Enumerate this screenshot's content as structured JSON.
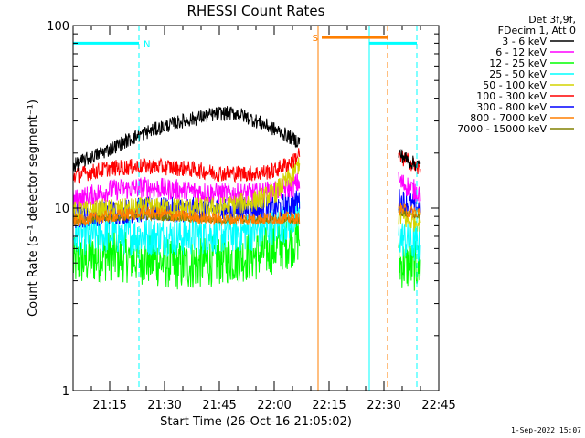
{
  "chart_data": {
    "type": "line",
    "title": "RHESSI Count Rates",
    "xlabel": "Start Time (26-Oct-16 21:05:02)",
    "ylabel": "Count Rate (s⁻¹ detector segment⁻¹)",
    "yscale": "log",
    "xlim": [
      "21:05",
      "22:45"
    ],
    "ylim": [
      1,
      100
    ],
    "x_ticks": [
      "21:15",
      "21:30",
      "21:45",
      "22:00",
      "22:15",
      "22:30",
      "22:45"
    ],
    "y_ticks": [
      "1",
      "10",
      "100"
    ],
    "legend_header": [
      "Det 3f,9f,",
      "FDecim 1, Att 0"
    ],
    "legend_position": "right",
    "timestamp": "1-Sep-2022 15:07",
    "series": [
      {
        "name": "3 - 6 keV",
        "color": "#000000",
        "points": [
          [
            "21:05",
            17
          ],
          [
            "21:15",
            21
          ],
          [
            "21:25",
            26
          ],
          [
            "21:35",
            30
          ],
          [
            "21:45",
            33
          ],
          [
            "21:50",
            33
          ],
          [
            "21:55",
            30
          ],
          [
            "22:00",
            27
          ],
          [
            "22:05",
            24
          ],
          [
            "22:07",
            23
          ]
        ],
        "points2": [
          [
            "22:34",
            20
          ],
          [
            "22:37",
            18
          ],
          [
            "22:40",
            17
          ]
        ]
      },
      {
        "name": "6 - 12 keV",
        "color": "#ff00ff",
        "points": [
          [
            "21:05",
            11
          ],
          [
            "21:15",
            12.5
          ],
          [
            "21:25",
            13
          ],
          [
            "21:35",
            12.5
          ],
          [
            "21:45",
            12
          ],
          [
            "21:55",
            12
          ],
          [
            "22:00",
            12.5
          ],
          [
            "22:05",
            13
          ],
          [
            "22:07",
            14
          ]
        ],
        "points2": [
          [
            "22:34",
            14
          ],
          [
            "22:37",
            13
          ],
          [
            "22:40",
            12
          ]
        ]
      },
      {
        "name": "12 - 25 keV",
        "color": "#00ff00",
        "points": [
          [
            "21:05",
            5
          ],
          [
            "21:15",
            5.5
          ],
          [
            "21:25",
            5.2
          ],
          [
            "21:35",
            4.8
          ],
          [
            "21:45",
            5.2
          ],
          [
            "21:55",
            5.5
          ],
          [
            "22:00",
            6
          ],
          [
            "22:05",
            6.5
          ],
          [
            "22:07",
            7
          ]
        ],
        "points2": [
          [
            "22:34",
            5
          ],
          [
            "22:37",
            4.8
          ],
          [
            "22:40",
            4.8
          ]
        ]
      },
      {
        "name": "25 - 50 keV",
        "color": "#00ffff",
        "points": [
          [
            "21:05",
            7
          ],
          [
            "21:15",
            7.2
          ],
          [
            "21:25",
            7
          ],
          [
            "21:35",
            7
          ],
          [
            "21:45",
            7.2
          ],
          [
            "21:55",
            7.5
          ],
          [
            "22:00",
            8
          ],
          [
            "22:05",
            8.5
          ],
          [
            "22:07",
            9
          ]
        ],
        "points2": [
          [
            "22:34",
            7
          ],
          [
            "22:37",
            6.5
          ],
          [
            "22:40",
            6.2
          ]
        ]
      },
      {
        "name": "50 - 100 keV",
        "color": "#d4d400",
        "points": [
          [
            "21:05",
            9.5
          ],
          [
            "21:15",
            9.8
          ],
          [
            "21:25",
            10
          ],
          [
            "21:35",
            10
          ],
          [
            "21:45",
            10
          ],
          [
            "21:55",
            11
          ],
          [
            "22:00",
            12
          ],
          [
            "22:05",
            15
          ],
          [
            "22:07",
            18
          ]
        ],
        "points2": [
          [
            "22:34",
            9
          ],
          [
            "22:37",
            8.5
          ],
          [
            "22:40",
            8.5
          ]
        ]
      },
      {
        "name": "100 - 300 keV",
        "color": "#ff0000",
        "points": [
          [
            "21:05",
            15
          ],
          [
            "21:15",
            16.5
          ],
          [
            "21:25",
            17
          ],
          [
            "21:35",
            16.5
          ],
          [
            "21:45",
            15.5
          ],
          [
            "21:55",
            15.5
          ],
          [
            "22:00",
            16
          ],
          [
            "22:05",
            18
          ],
          [
            "22:07",
            20
          ]
        ],
        "points2": [
          [
            "22:34",
            19
          ],
          [
            "22:37",
            18
          ],
          [
            "22:40",
            16
          ]
        ]
      },
      {
        "name": "300 - 800 keV",
        "color": "#0000ff",
        "points": [
          [
            "21:05",
            9
          ],
          [
            "21:15",
            9.5
          ],
          [
            "21:25",
            9.8
          ],
          [
            "21:35",
            9.8
          ],
          [
            "21:45",
            9.8
          ],
          [
            "21:55",
            9.8
          ],
          [
            "22:00",
            10
          ],
          [
            "22:05",
            10.5
          ],
          [
            "22:07",
            11
          ]
        ],
        "points2": [
          [
            "22:34",
            11
          ],
          [
            "22:37",
            10.5
          ],
          [
            "22:40",
            10
          ]
        ]
      },
      {
        "name": "800 - 7000 keV",
        "color": "#ff7f00",
        "points": [
          [
            "21:05",
            8.5
          ],
          [
            "21:15",
            9
          ],
          [
            "21:25",
            9.5
          ],
          [
            "21:35",
            9
          ],
          [
            "21:45",
            8.7
          ],
          [
            "21:55",
            8.7
          ],
          [
            "22:00",
            8.8
          ],
          [
            "22:05",
            8.8
          ],
          [
            "22:07",
            8.8
          ]
        ],
        "points2": [
          [
            "22:34",
            10
          ],
          [
            "22:37",
            9.5
          ],
          [
            "22:40",
            9.5
          ]
        ]
      },
      {
        "name": "7000 - 15000 keV",
        "color": "#808000",
        "points": [
          [
            "21:05",
            8.5
          ],
          [
            "21:15",
            8.8
          ],
          [
            "21:25",
            9
          ],
          [
            "21:35",
            8.8
          ],
          [
            "21:45",
            8.6
          ],
          [
            "21:55",
            8.6
          ],
          [
            "22:00",
            8.6
          ],
          [
            "22:05",
            8.6
          ],
          [
            "22:07",
            8.6
          ]
        ],
        "points2": [
          [
            "22:34",
            9.5
          ],
          [
            "22:37",
            9.2
          ],
          [
            "22:40",
            9
          ]
        ]
      }
    ],
    "segments": [
      {
        "label": "N",
        "color": "#00ffff",
        "from": "21:05",
        "to": "21:23",
        "y": 80
      },
      {
        "label": "S",
        "color": "#ff7f00",
        "from": "22:13",
        "to": "22:31",
        "y": 86
      },
      {
        "label": "",
        "color": "#00ffff",
        "from": "22:26",
        "to": "22:39",
        "y": 80
      }
    ],
    "vlines": [
      {
        "t": "21:05",
        "color": "#00ffff",
        "style": "solid"
      },
      {
        "t": "21:23",
        "color": "#00ffff",
        "style": "dashed"
      },
      {
        "t": "22:12",
        "color": "#ff7f00",
        "style": "solid"
      },
      {
        "t": "22:26",
        "color": "#00ffff",
        "style": "solid"
      },
      {
        "t": "22:31",
        "color": "#ff7f00",
        "style": "dashed"
      },
      {
        "t": "22:39",
        "color": "#00ffff",
        "style": "dashed"
      }
    ]
  }
}
